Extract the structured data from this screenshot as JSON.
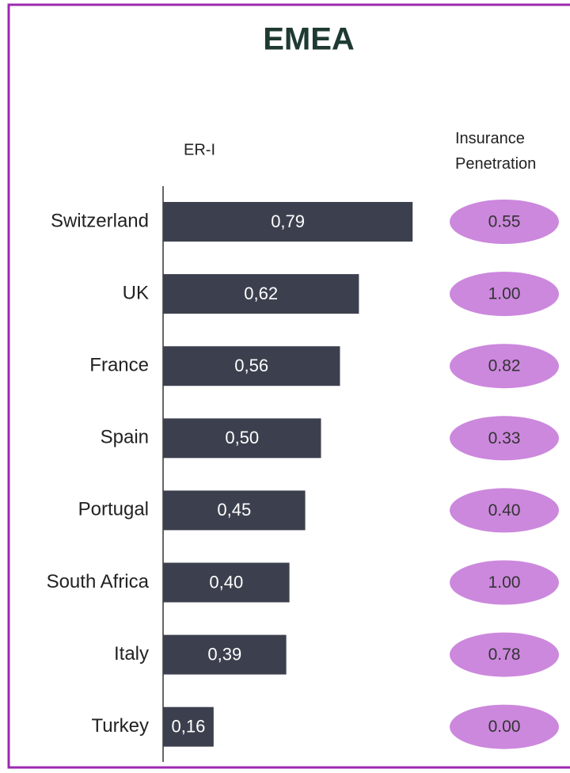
{
  "chart_data": {
    "type": "bar",
    "orientation": "horizontal",
    "title": "EMEA",
    "categories": [
      "Switzerland",
      "UK",
      "France",
      "Spain",
      "Portugal",
      "South Africa",
      "Italy",
      "Turkey"
    ],
    "series": [
      {
        "name": "ER-I",
        "color": "#3c404e",
        "values": [
          0.79,
          0.62,
          0.56,
          0.5,
          0.45,
          0.4,
          0.39,
          0.16
        ],
        "value_labels": [
          "0,79",
          "0,62",
          "0,56",
          "0,50",
          "0,45",
          "0,40",
          "0,39",
          "0,16"
        ]
      },
      {
        "name": "Insurance Penetration",
        "color": "#cc88dd",
        "values": [
          0.55,
          1.0,
          0.82,
          0.33,
          0.4,
          1.0,
          0.78,
          0.0
        ],
        "value_labels": [
          "0.55",
          "1.00",
          "0.82",
          "0.33",
          "0.40",
          "1.00",
          "0.78",
          "0.00"
        ]
      }
    ]
  }
}
